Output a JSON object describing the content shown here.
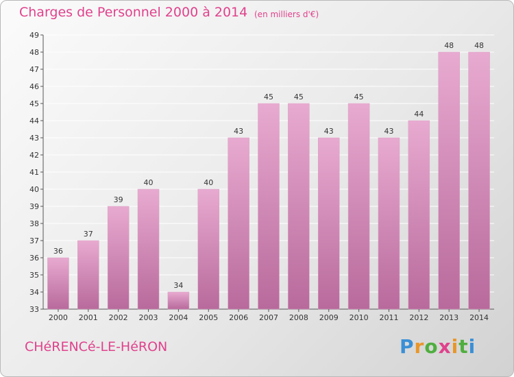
{
  "header": {
    "title": "Charges de Personnel 2000 à 2014",
    "subtitle": "(en milliers d'€)"
  },
  "footer": {
    "location": "CHéRENCé-LE-HéRON",
    "logo": "Proxiti"
  },
  "colors": {
    "title": "#e0418c",
    "bar_light": "#e8aad0",
    "bar_dark": "#b86a9c",
    "grid": "#ffffff"
  },
  "chart_data": {
    "type": "bar",
    "title": "Charges de Personnel 2000 à 2014",
    "subtitle": "(en milliers d'€)",
    "xlabel": "",
    "ylabel": "",
    "categories": [
      "2000",
      "2001",
      "2002",
      "2003",
      "2004",
      "2005",
      "2006",
      "2007",
      "2008",
      "2009",
      "2010",
      "2011",
      "2012",
      "2013",
      "2014"
    ],
    "values": [
      36,
      37,
      39,
      40,
      34,
      40,
      43,
      45,
      45,
      43,
      45,
      43,
      44,
      48,
      48
    ],
    "data_labels": [
      "36",
      "37",
      "39",
      "40",
      "34",
      "40",
      "43",
      "45",
      "45",
      "43",
      "45",
      "43",
      "44",
      "48",
      "48"
    ],
    "ylim": [
      33,
      49
    ],
    "yticks": [
      "33",
      "34",
      "35",
      "36",
      "37",
      "38",
      "39",
      "40",
      "41",
      "42",
      "43",
      "44",
      "45",
      "46",
      "47",
      "48",
      "49"
    ],
    "grid": true,
    "legend": "none"
  }
}
